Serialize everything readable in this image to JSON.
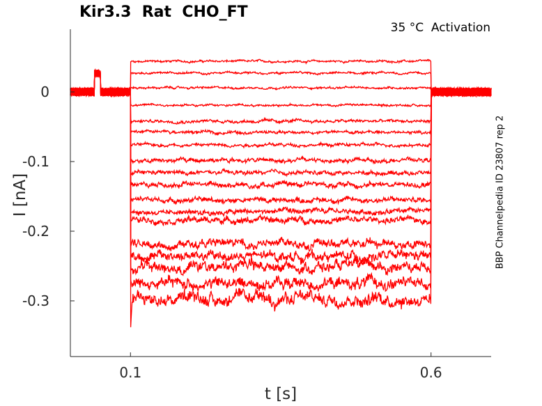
{
  "chart_data": {
    "type": "line",
    "title": "Kir3.3  Rat  CHO_FT",
    "annotation": "35 °C  Activation",
    "side_label": "BBP Channelpedia ID 23807 rep 2",
    "xlabel": "t [s]",
    "ylabel": "I [nA]",
    "xlim": [
      0.0,
      0.7
    ],
    "ylim": [
      -0.38,
      0.09
    ],
    "xticks": [
      0.1,
      0.6
    ],
    "xtick_labels": [
      "0.1",
      "0.6"
    ],
    "yticks": [
      0,
      -0.1,
      -0.2,
      -0.3
    ],
    "ytick_labels": [
      "0",
      "-0.1",
      "-0.2",
      "-0.3"
    ],
    "grid": false,
    "color": "#ff0000",
    "pulse_start": 0.1,
    "pulse_end": 0.6,
    "prepulse": {
      "start": 0.04,
      "end": 0.05,
      "value": 0.027
    },
    "trace_levels": [
      0.044,
      0.027,
      0.006,
      -0.019,
      -0.042,
      -0.058,
      -0.076,
      -0.098,
      -0.116,
      -0.133,
      -0.155,
      -0.172,
      -0.184,
      -0.218,
      -0.236,
      -0.251,
      -0.275,
      -0.297
    ],
    "noise_amplitude": [
      0.002,
      0.002,
      0.002,
      0.002,
      0.003,
      0.003,
      0.003,
      0.004,
      0.004,
      0.005,
      0.005,
      0.005,
      0.006,
      0.008,
      0.009,
      0.01,
      0.011,
      0.012
    ],
    "peak_transient": -0.343
  }
}
